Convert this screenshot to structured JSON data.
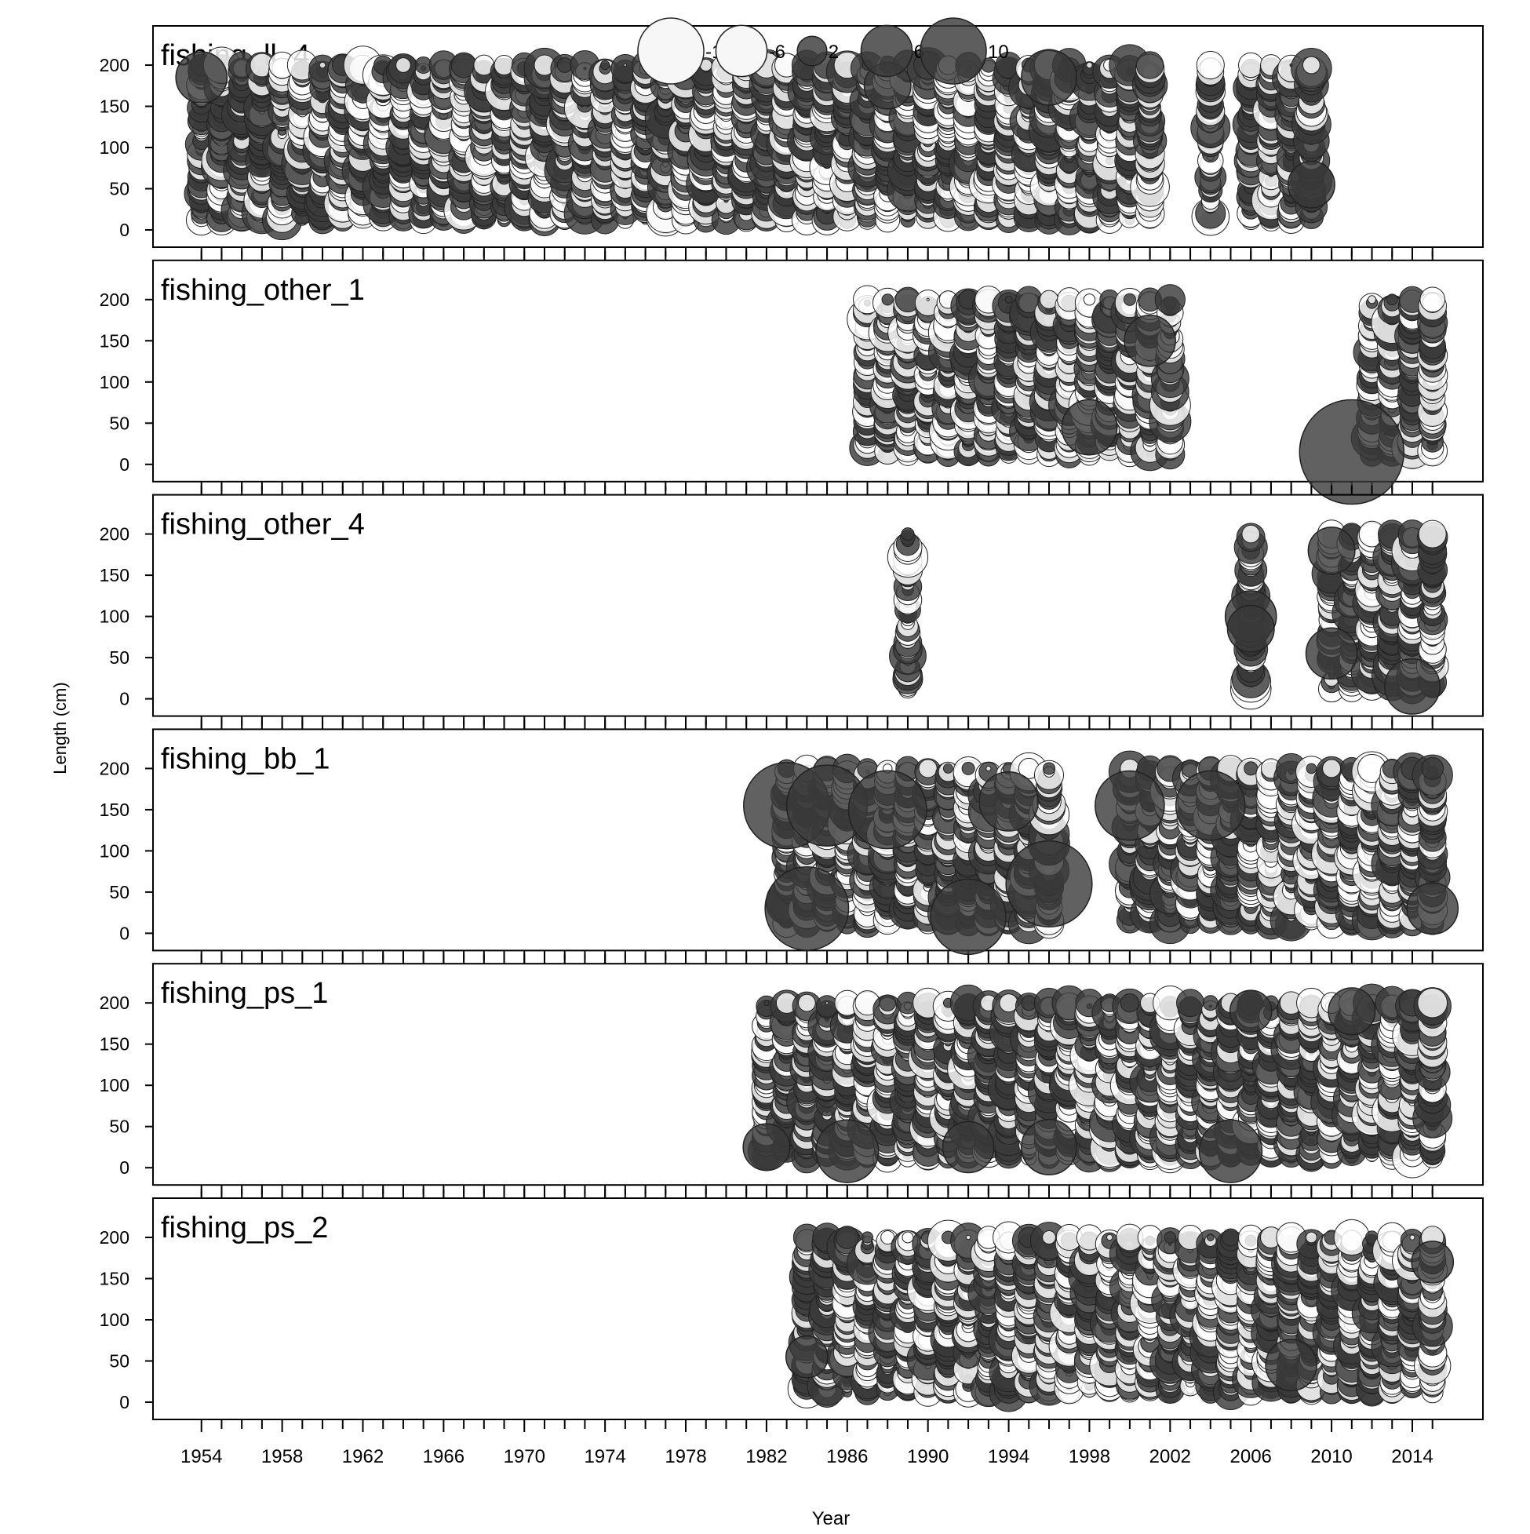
{
  "chart_data": {
    "type": "scatter",
    "subtype": "bubble-residuals",
    "xlabel": "Year",
    "ylabel": "Length (cm)",
    "xlim": [
      1951.6,
      2017.5
    ],
    "ylim": [
      0,
      200
    ],
    "x_ticks": [
      1954,
      1958,
      1962,
      1966,
      1970,
      1974,
      1978,
      1982,
      1986,
      1990,
      1994,
      1998,
      2002,
      2006,
      2010,
      2014
    ],
    "y_ticks": [
      0,
      50,
      100,
      150,
      200
    ],
    "legend": {
      "placement": "top-center",
      "entries": [
        {
          "label": "-10",
          "value": -10
        },
        {
          "label": "-6",
          "value": -6
        },
        {
          "label": "2",
          "value": 2
        },
        {
          "label": "6",
          "value": 6
        },
        {
          "label": "10",
          "value": 10
        }
      ]
    },
    "colors": {
      "positive": "#3a3a3a",
      "negative": "#ffffff",
      "stroke": "#222222"
    },
    "panels": [
      {
        "name": "fishing_ll_4",
        "year_ranges": [
          [
            1954,
            2001
          ],
          [
            2004,
            2004
          ],
          [
            2006,
            2009
          ]
        ],
        "len_min": 12,
        "len_max": 200,
        "big_bubbles": [
          {
            "x": 1954,
            "y": 185,
            "value": 6
          },
          {
            "x": 1996,
            "y": 185,
            "value": 7
          },
          {
            "x": 1988,
            "y": 175,
            "value": 5
          },
          {
            "x": 2009,
            "y": 55,
            "value": 5
          }
        ]
      },
      {
        "name": "fishing_other_1",
        "year_ranges": [
          [
            1987,
            1995
          ],
          [
            1996,
            2002
          ],
          [
            2012,
            2015
          ]
        ],
        "len_min": 12,
        "len_max": 200,
        "big_bubbles": [
          {
            "x": 2011,
            "y": 15,
            "value": 25
          },
          {
            "x": 1998,
            "y": 45,
            "value": 7
          },
          {
            "x": 2001,
            "y": 150,
            "value": 6
          }
        ]
      },
      {
        "name": "fishing_other_4",
        "year_ranges": [
          [
            1989,
            1989
          ],
          [
            2006,
            2006
          ],
          [
            2010,
            2015
          ]
        ],
        "len_min": 12,
        "len_max": 200,
        "big_bubbles": [
          {
            "x": 2006,
            "y": 100,
            "value": 6
          },
          {
            "x": 2006,
            "y": 85,
            "value": 5
          },
          {
            "x": 2010,
            "y": 180,
            "value": 5
          },
          {
            "x": 2010,
            "y": 55,
            "value": 6
          },
          {
            "x": 2014,
            "y": 15,
            "value": 7
          }
        ]
      },
      {
        "name": "fishing_bb_1",
        "year_ranges": [
          [
            1983,
            1996
          ],
          [
            2000,
            2015
          ]
        ],
        "len_min": 12,
        "len_max": 200,
        "big_bubbles": [
          {
            "x": 1983,
            "y": 155,
            "value": 17
          },
          {
            "x": 1984,
            "y": 30,
            "value": 16
          },
          {
            "x": 1985,
            "y": 155,
            "value": 15
          },
          {
            "x": 1988,
            "y": 150,
            "value": 14
          },
          {
            "x": 1992,
            "y": 20,
            "value": 13
          },
          {
            "x": 1996,
            "y": 60,
            "value": 17
          },
          {
            "x": 1994,
            "y": 160,
            "value": 8
          },
          {
            "x": 2000,
            "y": 155,
            "value": 11
          },
          {
            "x": 2004,
            "y": 155,
            "value": 11
          },
          {
            "x": 2015,
            "y": 30,
            "value": 6
          }
        ]
      },
      {
        "name": "fishing_ps_1",
        "year_ranges": [
          [
            1982,
            2015
          ]
        ],
        "len_min": 12,
        "len_max": 200,
        "big_bubbles": [
          {
            "x": 1982,
            "y": 25,
            "value": 5
          },
          {
            "x": 1986,
            "y": 20,
            "value": 9
          },
          {
            "x": 1992,
            "y": 25,
            "value": 6
          },
          {
            "x": 1996,
            "y": 25,
            "value": 7
          },
          {
            "x": 2005,
            "y": 20,
            "value": 9
          },
          {
            "x": 2006,
            "y": 190,
            "value": 4
          },
          {
            "x": 2011,
            "y": 190,
            "value": 5
          }
        ]
      },
      {
        "name": "fishing_ps_2",
        "year_ranges": [
          [
            1984,
            2015
          ]
        ],
        "len_min": 12,
        "len_max": 200,
        "big_bubbles": [
          {
            "x": 1984,
            "y": 55,
            "value": 4
          },
          {
            "x": 2008,
            "y": 45,
            "value": 6
          },
          {
            "x": 2015,
            "y": 170,
            "value": 4
          }
        ]
      }
    ]
  }
}
